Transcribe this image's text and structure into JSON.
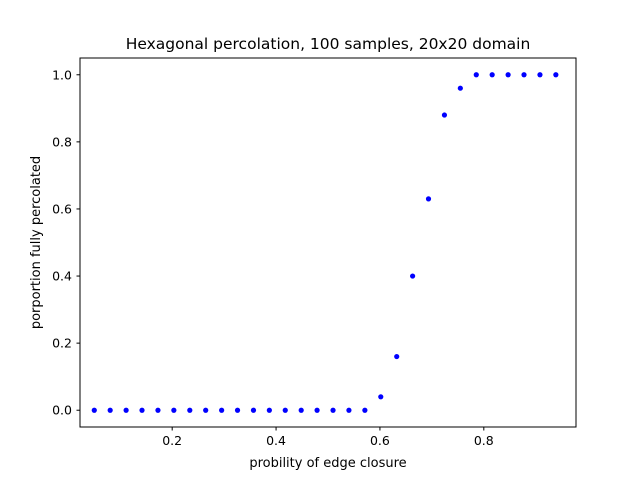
{
  "chart_data": {
    "type": "scatter",
    "title": "Hexagonal percolation, 100 samples, 20x20 domain",
    "xlabel": "probility of edge closure",
    "ylabel": "porportion fully percolated",
    "xlim": [
      0.0225,
      0.9775
    ],
    "ylim": [
      -0.05,
      1.05
    ],
    "xticks": [
      0.2,
      0.4,
      0.6,
      0.8
    ],
    "xtick_labels": [
      "0.2",
      "0.4",
      "0.6",
      "0.8"
    ],
    "yticks": [
      0.0,
      0.2,
      0.4,
      0.6,
      0.8,
      1.0
    ],
    "ytick_labels": [
      "0.0",
      "0.2",
      "0.4",
      "0.6",
      "0.8",
      "1.0"
    ],
    "grid": false,
    "marker_color": "#0000ff",
    "x": [
      0.05,
      0.0806,
      0.1113,
      0.1419,
      0.1726,
      0.2032,
      0.2339,
      0.2645,
      0.2952,
      0.3258,
      0.3565,
      0.3871,
      0.4177,
      0.4484,
      0.479,
      0.5097,
      0.5403,
      0.571,
      0.6016,
      0.6323,
      0.6629,
      0.6935,
      0.7242,
      0.7548,
      0.7855,
      0.8161,
      0.8468,
      0.8774,
      0.9081,
      0.9387
    ],
    "y": [
      0,
      0,
      0,
      0,
      0,
      0,
      0,
      0,
      0,
      0,
      0,
      0,
      0,
      0,
      0,
      0,
      0,
      0,
      0.04,
      0.16,
      0.4,
      0.63,
      0.88,
      0.96,
      1.0,
      1.0,
      1.0,
      1.0,
      1.0,
      1.0
    ]
  }
}
